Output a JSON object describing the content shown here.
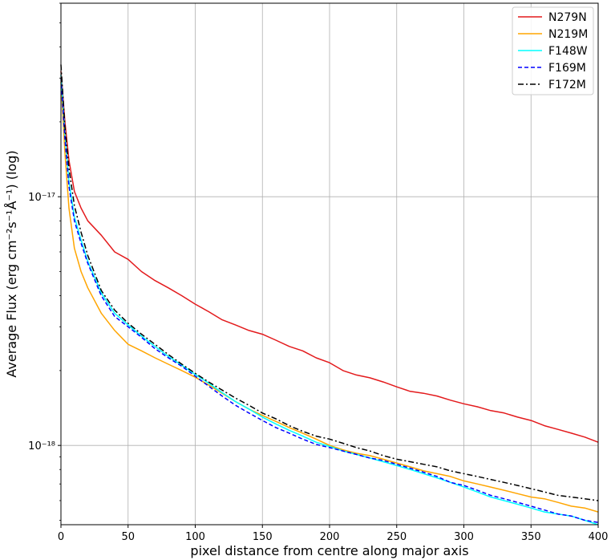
{
  "chart_data": {
    "type": "line",
    "title": "",
    "xlabel": "pixel distance from centre along major axis",
    "ylabel": "Average Flux (erg cm⁻²s⁻¹Å⁻¹) (log)",
    "xlim": [
      0,
      400
    ],
    "ylim": [
      4.8e-19,
      6e-17
    ],
    "yscale": "log",
    "grid": true,
    "legend_position": "top-right",
    "x_ticks": [
      0,
      50,
      100,
      150,
      200,
      250,
      300,
      350,
      400
    ],
    "y_ticks": [
      {
        "value": 1e-17,
        "label": "10⁻¹⁷"
      },
      {
        "value": 1e-18,
        "label": "10⁻¹⁸"
      }
    ],
    "x": [
      0,
      3,
      6,
      10,
      15,
      20,
      30,
      40,
      50,
      60,
      70,
      80,
      90,
      100,
      110,
      120,
      130,
      140,
      150,
      160,
      170,
      180,
      190,
      200,
      210,
      220,
      230,
      240,
      250,
      260,
      270,
      280,
      290,
      300,
      310,
      320,
      330,
      340,
      350,
      360,
      370,
      380,
      390,
      400
    ],
    "series": [
      {
        "name": "N279N",
        "color": "#e31a1c",
        "dash": "solid",
        "values": [
          3.2e-17,
          2e-17,
          1.4e-17,
          1.05e-17,
          9e-18,
          8e-18,
          7e-18,
          6e-18,
          5.6e-18,
          5e-18,
          4.6e-18,
          4.3e-18,
          4e-18,
          3.7e-18,
          3.45e-18,
          3.2e-18,
          3.05e-18,
          2.9e-18,
          2.8e-18,
          2.65e-18,
          2.5e-18,
          2.4e-18,
          2.25e-18,
          2.15e-18,
          2e-18,
          1.92e-18,
          1.87e-18,
          1.8e-18,
          1.72e-18,
          1.65e-18,
          1.62e-18,
          1.58e-18,
          1.52e-18,
          1.47e-18,
          1.43e-18,
          1.38e-18,
          1.35e-18,
          1.3e-18,
          1.26e-18,
          1.2e-18,
          1.16e-18,
          1.12e-18,
          1.08e-18,
          1.03e-18
        ]
      },
      {
        "name": "N219M",
        "color": "#ffa500",
        "dash": "solid",
        "values": [
          2.9e-17,
          1.5e-17,
          9e-18,
          6.2e-18,
          5e-18,
          4.3e-18,
          3.4e-18,
          2.9e-18,
          2.55e-18,
          2.4e-18,
          2.25e-18,
          2.12e-18,
          2e-18,
          1.88e-18,
          1.75e-18,
          1.62e-18,
          1.5e-18,
          1.4e-18,
          1.32e-18,
          1.25e-18,
          1.18e-18,
          1.12e-18,
          1.06e-18,
          1e-18,
          9.6e-19,
          9.3e-19,
          9.1e-19,
          8.8e-19,
          8.5e-19,
          8.2e-19,
          7.9e-19,
          7.7e-19,
          7.5e-19,
          7.2e-19,
          7e-19,
          6.8e-19,
          6.6e-19,
          6.4e-19,
          6.2e-19,
          6.1e-19,
          5.9e-19,
          5.7e-19,
          5.6e-19,
          5.4e-19
        ]
      },
      {
        "name": "F148W",
        "color": "#00ffff",
        "dash": "solid",
        "values": [
          3.1e-17,
          1.8e-17,
          1.15e-17,
          8.3e-18,
          6.7e-18,
          5.5e-18,
          4.1e-18,
          3.4e-18,
          3.05e-18,
          2.75e-18,
          2.5e-18,
          2.28e-18,
          2.1e-18,
          1.93e-18,
          1.78e-18,
          1.63e-18,
          1.5e-18,
          1.4e-18,
          1.3e-18,
          1.22e-18,
          1.15e-18,
          1.09e-18,
          1.03e-18,
          9.9e-19,
          9.5e-19,
          9.2e-19,
          8.9e-19,
          8.6e-19,
          8.3e-19,
          8e-19,
          7.7e-19,
          7.4e-19,
          7.1e-19,
          6.8e-19,
          6.5e-19,
          6.2e-19,
          6e-19,
          5.8e-19,
          5.6e-19,
          5.4e-19,
          5.3e-19,
          5.2e-19,
          5e-19,
          4.8e-19
        ]
      },
      {
        "name": "F169M",
        "color": "#0000ff",
        "dash": "dashed",
        "values": [
          3e-17,
          1.7e-17,
          1.1e-17,
          8e-18,
          6.5e-18,
          5.4e-18,
          4e-18,
          3.3e-18,
          3e-18,
          2.72e-18,
          2.45e-18,
          2.25e-18,
          2.08e-18,
          1.9e-18,
          1.73e-18,
          1.58e-18,
          1.45e-18,
          1.35e-18,
          1.26e-18,
          1.18e-18,
          1.12e-18,
          1.06e-18,
          1.01e-18,
          9.8e-19,
          9.5e-19,
          9.2e-19,
          8.9e-19,
          8.7e-19,
          8.4e-19,
          8.1e-19,
          7.8e-19,
          7.5e-19,
          7.1e-19,
          6.9e-19,
          6.6e-19,
          6.3e-19,
          6.1e-19,
          5.9e-19,
          5.7e-19,
          5.5e-19,
          5.3e-19,
          5.2e-19,
          5e-19,
          4.9e-19
        ]
      },
      {
        "name": "F172M",
        "color": "#000000",
        "dash": "dashdot",
        "values": [
          3.4e-17,
          1.9e-17,
          1.3e-17,
          9.2e-18,
          7.2e-18,
          5.8e-18,
          4.2e-18,
          3.5e-18,
          3.1e-18,
          2.8e-18,
          2.55e-18,
          2.32e-18,
          2.12e-18,
          1.95e-18,
          1.8e-18,
          1.67e-18,
          1.55e-18,
          1.45e-18,
          1.35e-18,
          1.28e-18,
          1.2e-18,
          1.14e-18,
          1.09e-18,
          1.06e-18,
          1.02e-18,
          9.8e-19,
          9.5e-19,
          9.1e-19,
          8.8e-19,
          8.6e-19,
          8.4e-19,
          8.2e-19,
          7.9e-19,
          7.7e-19,
          7.5e-19,
          7.3e-19,
          7.1e-19,
          6.9e-19,
          6.7e-19,
          6.5e-19,
          6.3e-19,
          6.2e-19,
          6.1e-19,
          6e-19
        ]
      }
    ]
  }
}
